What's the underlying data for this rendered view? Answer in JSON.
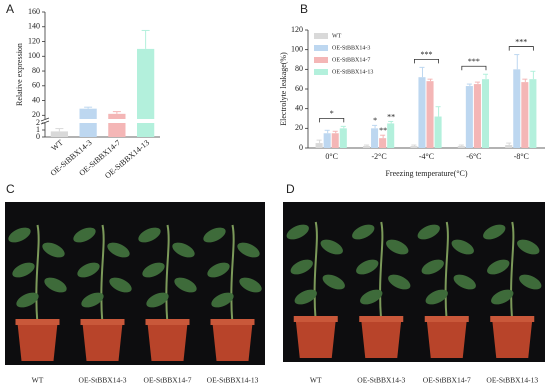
{
  "panel_labels": [
    "A",
    "B",
    "C",
    "D"
  ],
  "chart_data": [
    {
      "type": "bar",
      "ylabel": "Relative expression",
      "categories": [
        "WT",
        "OE-StBBX14-3",
        "OE-StBBX14-7",
        "OE-StBBX14-13"
      ],
      "values": [
        0.8,
        29,
        22,
        110
      ],
      "errors": [
        0.4,
        2,
        3,
        25
      ],
      "colors": [
        "#d9d9d9",
        "#bdd7f0",
        "#f4b6b6",
        "#b3f0dc"
      ],
      "ylim": [
        0,
        160
      ],
      "y_break": [
        2,
        15
      ],
      "yticks": [
        0,
        1,
        2,
        20,
        40,
        60,
        80,
        100,
        120,
        140,
        160
      ]
    },
    {
      "type": "grouped-bar",
      "ylabel": "Electrolyte leakage(%)",
      "xlabel": "Freezing temperature(°C)",
      "categories": [
        "0°C",
        "-2°C",
        "-4°C",
        "-6°C",
        "-8°C"
      ],
      "series": [
        {
          "name": "WT",
          "color": "#d9d9d9",
          "values": [
            5,
            2,
            2,
            2,
            3
          ],
          "errors": [
            3,
            1,
            1,
            1,
            2
          ],
          "labels": [
            null,
            null,
            null,
            null,
            null
          ]
        },
        {
          "name": "OE-StBBX14-3",
          "color": "#bdd7f0",
          "values": [
            15,
            20,
            72,
            63,
            80
          ],
          "errors": [
            3,
            3,
            10,
            2,
            15
          ],
          "labels": [
            null,
            "*",
            null,
            null,
            null
          ]
        },
        {
          "name": "OE-StBBX14-7",
          "color": "#f4b6b6",
          "values": [
            15,
            10,
            68,
            65,
            67
          ],
          "errors": [
            2,
            3,
            2,
            2,
            3
          ],
          "labels": [
            null,
            "**",
            null,
            null,
            null
          ]
        },
        {
          "name": "OE-StBBX14-13",
          "color": "#b3f0dc",
          "values": [
            20,
            25,
            32,
            70,
            70
          ],
          "errors": [
            2,
            2,
            10,
            5,
            8
          ],
          "labels": [
            null,
            "**",
            null,
            null,
            null
          ]
        }
      ],
      "significance": [
        "*",
        null,
        "***",
        "***",
        "***"
      ],
      "ylim": [
        0,
        120
      ],
      "yticks": [
        0,
        20,
        40,
        60,
        80,
        100,
        120
      ],
      "legend": "upper left"
    }
  ],
  "photos": [
    {
      "labels": [
        "WT",
        "OE-StBBX14-3",
        "OE-StBBX14-7",
        "OE-StBBX14-13"
      ]
    },
    {
      "labels": [
        "WT",
        "OE-StBBX14-3",
        "OE-StBBX14-7",
        "OE-StBBX14-13"
      ]
    }
  ]
}
